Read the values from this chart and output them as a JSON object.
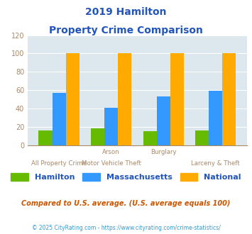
{
  "title_line1": "2019 Hamilton",
  "title_line2": "Property Crime Comparison",
  "groups": [
    {
      "name": "All Property Crime",
      "hamilton": 16,
      "massachusetts": 57,
      "national": 100
    },
    {
      "name": "Arson / Motor Vehicle Theft",
      "hamilton": 18,
      "massachusetts": 41,
      "national": 100
    },
    {
      "name": "Burglary",
      "hamilton": 15,
      "massachusetts": 53,
      "national": 100
    },
    {
      "name": "Larceny & Theft",
      "hamilton": 16,
      "massachusetts": 59,
      "national": 100
    }
  ],
  "color_hamilton": "#66bb00",
  "color_massachusetts": "#3399ff",
  "color_national": "#ffaa00",
  "ylim": [
    0,
    120
  ],
  "yticks": [
    0,
    20,
    40,
    60,
    80,
    100,
    120
  ],
  "bg_color": "#dde8ee",
  "legend_labels": [
    "Hamilton",
    "Massachusetts",
    "National"
  ],
  "note": "Compared to U.S. average. (U.S. average equals 100)",
  "footer": "© 2025 CityRating.com - https://www.cityrating.com/crime-statistics/",
  "title_color": "#2255bb",
  "axis_color": "#aa8866",
  "note_color": "#cc5500",
  "footer_color": "#3399cc",
  "xlabel_row1": [
    "",
    "Arson",
    "Burglary",
    ""
  ],
  "xlabel_row2": [
    "All Property Crime",
    "Motor Vehicle Theft",
    "",
    "Larceny & Theft"
  ]
}
